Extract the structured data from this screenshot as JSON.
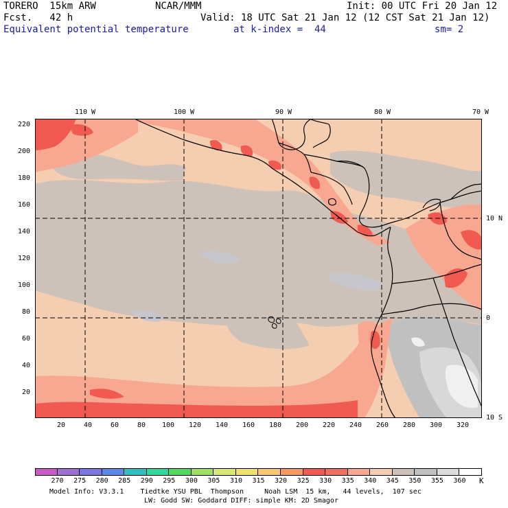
{
  "header": {
    "model": "TORERO  15km ARW",
    "org": "NCAR/MMM",
    "init": "Init: 00 UTC Fri 20 Jan 12",
    "fcst": "Fcst.   42 h",
    "valid": "Valid: 18 UTC Sat 21 Jan 12 (12 CST Sat 21 Jan 12)",
    "field": "Equivalent potential temperature",
    "level": "at k-index =  44",
    "smooth": "sm= 2"
  },
  "map": {
    "top_lon_labels": [
      "110 W",
      "100 W",
      "90 W",
      "80 W",
      "70 W"
    ],
    "right_lat_labels": [
      "10 N",
      "0",
      "10 S"
    ],
    "y_ticks": [
      "220",
      "200",
      "180",
      "160",
      "140",
      "120",
      "100",
      "80",
      "60",
      "40",
      "20"
    ],
    "x_ticks": [
      "20",
      "40",
      "60",
      "80",
      "100",
      "120",
      "140",
      "160",
      "180",
      "200",
      "220",
      "240",
      "260",
      "280",
      "300",
      "320"
    ]
  },
  "colorbar": {
    "levels": [
      "270",
      "275",
      "280",
      "285",
      "290",
      "295",
      "300",
      "305",
      "310",
      "315",
      "320",
      "325",
      "330",
      "335",
      "340",
      "345",
      "350",
      "355",
      "360"
    ],
    "colors": [
      "#c85ac8",
      "#a070d0",
      "#7a78e0",
      "#5a8ae6",
      "#30c0c0",
      "#30d8a0",
      "#50d860",
      "#a0e060",
      "#d8e870",
      "#f0e070",
      "#f8c870",
      "#f89a60",
      "#f05a50",
      "#f07060",
      "#f8a890",
      "#f5cdb0",
      "#cdc2ba",
      "#c0c0c0",
      "#dcdcdc",
      "#ffffff"
    ],
    "unit": "K"
  },
  "footer": {
    "line1": "Model Info: V3.3.1    Tiedtke YSU PBL  Thompson     Noah LSM  15 km,   44 levels,  107 sec",
    "line2": "LW: Godd SW: Goddard DIFF: simple KM: 2D Smagor"
  }
}
